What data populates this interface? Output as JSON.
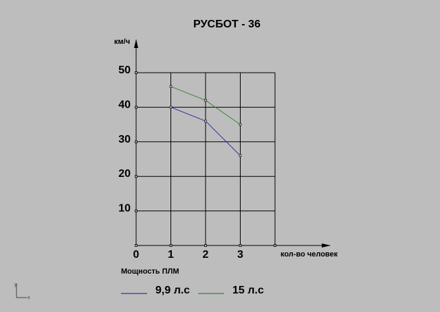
{
  "chart_data": {
    "type": "line",
    "title": "РУСБОТ - 36",
    "ylabel": "км/ч",
    "xlabel": "кол-во человек",
    "xlim": [
      0,
      4
    ],
    "ylim": [
      0,
      50
    ],
    "x_ticks": [
      0,
      1,
      2,
      3
    ],
    "y_ticks": [
      10,
      20,
      30,
      40,
      50
    ],
    "x_tick_labels": [
      "0",
      "1",
      "2",
      "3"
    ],
    "y_tick_labels": [
      "10",
      "20",
      "30",
      "40",
      "50"
    ],
    "grid": true,
    "legend_title": "Мощность ПЛМ",
    "legend_position": "bottom",
    "x": [
      1,
      2,
      3
    ],
    "series": [
      {
        "name": "9,9 л.с",
        "color": "#3333aa",
        "values": [
          40,
          36,
          26
        ]
      },
      {
        "name": "15 л.с",
        "color": "#338833",
        "values": [
          46,
          42,
          35
        ]
      }
    ]
  },
  "ucs": {
    "y": "y",
    "x": "x"
  }
}
